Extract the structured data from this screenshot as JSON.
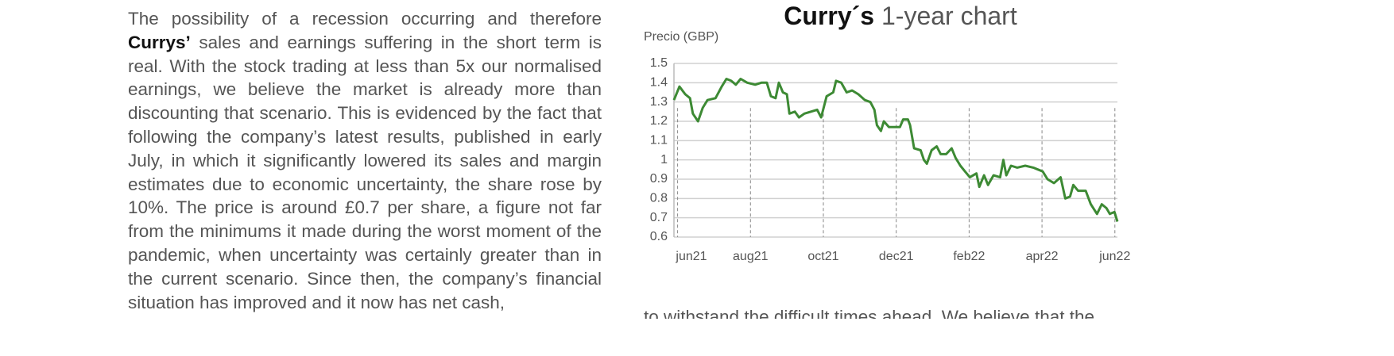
{
  "text": {
    "lead": "The possibility of a recession occurring and therefore ",
    "company": "Currys’",
    "body": " sales and earnings suffering in the short term is real. With the stock trading at less than 5x our normalised earnings, we believe the market is already more than discounting that scenario. This is evidenced by the fact that following the company’s latest results, published in early July, in which it significantly lowered its sales and margin estimates due to economic uncertainty, the share rose by 10%. The price is around £0.7 per share, a figure not far from the minimums it made during the worst moment of the pandemic, when uncertainty was certainly greater than in the current scenario. Since then, the company’s financial situation has improved and it now has net cash,",
    "continuation": "to withstand the difficult times ahead. We believe that the"
  },
  "chart_data": {
    "type": "line",
    "title_bold": "Curry´s",
    "title": " 1-year chart",
    "y_label": "Precio (GBP)",
    "ylim": [
      0.6,
      1.5
    ],
    "yticks": [
      0.6,
      0.7,
      0.8,
      0.9,
      1,
      1.1,
      1.2,
      1.3,
      1.4,
      1.5
    ],
    "grid": true,
    "xlim": [
      5.9,
      18.07
    ],
    "xticks": [
      {
        "value": 6,
        "label": "jun21"
      },
      {
        "value": 8,
        "label": "aug21"
      },
      {
        "value": 10,
        "label": "oct21"
      },
      {
        "value": 12,
        "label": "dec21"
      },
      {
        "value": 14,
        "label": "feb22"
      },
      {
        "value": 16,
        "label": "apr22"
      },
      {
        "value": 18,
        "label": "jun22"
      }
    ],
    "x": [
      5.9,
      6.05,
      6.21,
      6.34,
      6.42,
      6.56,
      6.69,
      6.82,
      7.04,
      7.21,
      7.34,
      7.47,
      7.6,
      7.73,
      7.91,
      8.13,
      8.3,
      8.45,
      8.56,
      8.69,
      8.78,
      8.89,
      9.0,
      9.07,
      9.22,
      9.33,
      9.48,
      9.66,
      9.83,
      9.94,
      10.09,
      10.27,
      10.35,
      10.49,
      10.64,
      10.79,
      10.96,
      11.14,
      11.29,
      11.4,
      11.47,
      11.58,
      11.66,
      11.8,
      11.95,
      12.1,
      12.19,
      12.32,
      12.38,
      12.49,
      12.67,
      12.76,
      12.84,
      12.97,
      13.11,
      13.22,
      13.37,
      13.52,
      13.63,
      13.76,
      13.89,
      14.02,
      14.2,
      14.28,
      14.41,
      14.52,
      14.67,
      14.85,
      14.94,
      15.02,
      15.15,
      15.32,
      15.54,
      15.76,
      15.89,
      16.02,
      16.15,
      16.33,
      16.51,
      16.64,
      16.77,
      16.86,
      16.99,
      17.2,
      17.34,
      17.51,
      17.64,
      17.77,
      17.86,
      17.99,
      18.07
    ],
    "series": [
      {
        "color": "#3d8a34",
        "values": [
          1.31,
          1.38,
          1.34,
          1.32,
          1.24,
          1.2,
          1.27,
          1.31,
          1.32,
          1.38,
          1.42,
          1.41,
          1.39,
          1.42,
          1.4,
          1.39,
          1.4,
          1.4,
          1.33,
          1.32,
          1.4,
          1.35,
          1.34,
          1.24,
          1.25,
          1.22,
          1.24,
          1.25,
          1.26,
          1.22,
          1.33,
          1.35,
          1.41,
          1.4,
          1.35,
          1.36,
          1.34,
          1.31,
          1.3,
          1.26,
          1.18,
          1.15,
          1.2,
          1.17,
          1.17,
          1.17,
          1.21,
          1.21,
          1.18,
          1.06,
          1.05,
          1.0,
          0.98,
          1.05,
          1.07,
          1.03,
          1.03,
          1.06,
          1.01,
          0.97,
          0.94,
          0.91,
          0.93,
          0.86,
          0.92,
          0.87,
          0.92,
          0.91,
          1.0,
          0.92,
          0.97,
          0.96,
          0.97,
          0.96,
          0.95,
          0.94,
          0.9,
          0.88,
          0.91,
          0.8,
          0.81,
          0.87,
          0.84,
          0.84,
          0.77,
          0.72,
          0.77,
          0.75,
          0.72,
          0.73,
          0.68
        ]
      }
    ]
  }
}
